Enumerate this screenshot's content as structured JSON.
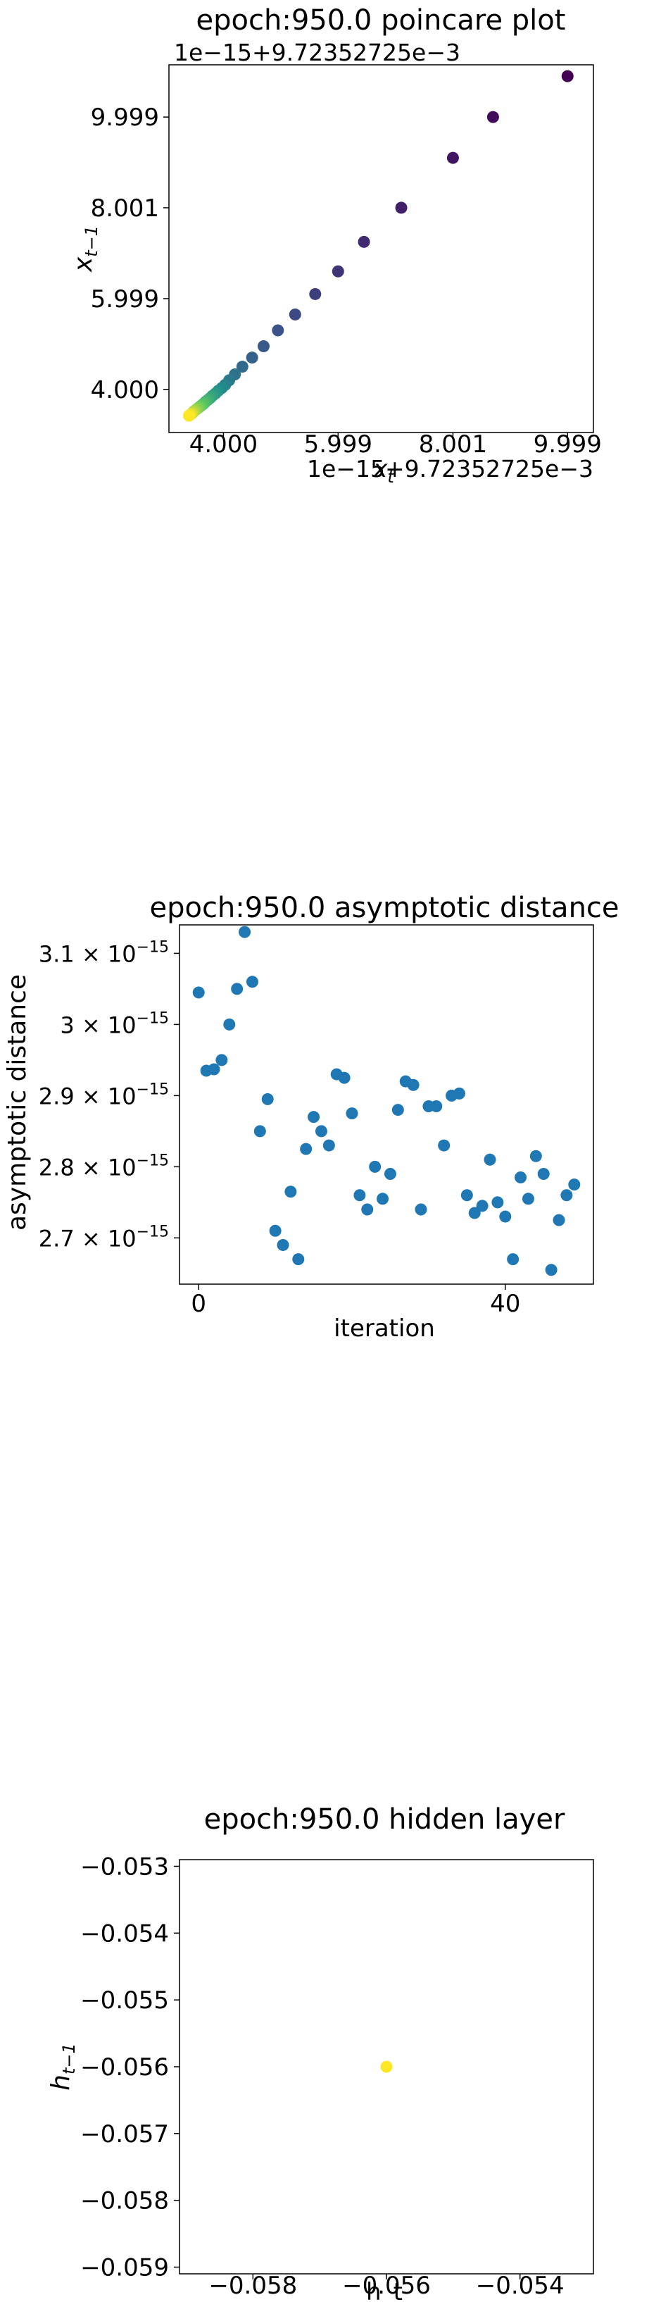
{
  "chart_data": [
    {
      "type": "scatter",
      "title": "epoch:950.0 poincare plot",
      "xlabel": "x_t",
      "ylabel": "x_{t-1}",
      "offset_label_top": "1e−15+9.72352725e−3",
      "offset_label_bottom": "1e−15+9.72352725e−3",
      "x_ticks": [
        "4.000",
        "5.999",
        "8.001",
        "9.999"
      ],
      "y_ticks": [
        "4.000",
        "5.999",
        "8.001",
        "9.999"
      ],
      "xlim": [
        3.05,
        10.45
      ],
      "ylim": [
        3.05,
        11.15
      ],
      "grid": false,
      "colormap": [
        "#440154",
        "#3b528b",
        "#21918c",
        "#5ec962",
        "#fde725"
      ],
      "x": [
        9.999,
        8.7,
        8.001,
        7.1,
        6.45,
        5.999,
        5.6,
        5.25,
        4.95,
        4.7,
        4.5,
        4.33,
        4.2,
        4.1,
        4.03,
        3.97,
        3.91,
        3.86,
        3.81,
        3.77,
        3.73,
        3.69,
        3.66,
        3.63,
        3.6,
        3.57,
        3.54,
        3.51,
        3.48,
        3.46,
        3.44,
        3.42,
        3.4
      ],
      "y": [
        10.9,
        9.999,
        9.1,
        8.001,
        7.25,
        6.6,
        6.1,
        5.65,
        5.3,
        4.95,
        4.7,
        4.5,
        4.33,
        4.2,
        4.1,
        4.03,
        3.97,
        3.91,
        3.86,
        3.81,
        3.77,
        3.73,
        3.69,
        3.66,
        3.63,
        3.6,
        3.57,
        3.54,
        3.51,
        3.48,
        3.46,
        3.44,
        3.42
      ]
    },
    {
      "type": "scatter",
      "title": "epoch:950.0 asymptotic distance",
      "xlabel": "iteration",
      "ylabel": "asymptotic distance",
      "x_ticks": [
        0,
        40
      ],
      "y_ticks": [
        {
          "value": 2.7,
          "mantissa": "2.7",
          "exp": "−15"
        },
        {
          "value": 2.8,
          "mantissa": "2.8",
          "exp": "−15"
        },
        {
          "value": 2.9,
          "mantissa": "2.9",
          "exp": "−15"
        },
        {
          "value": 3.0,
          "mantissa": "3",
          "exp": "−15"
        },
        {
          "value": 3.1,
          "mantissa": "3.1",
          "exp": "−15"
        }
      ],
      "times_sign": "×",
      "base": "10",
      "xlim": [
        -2.5,
        51.5
      ],
      "ylim": [
        2.635,
        3.14
      ],
      "grid": false,
      "color": "#1f77b4",
      "x": [
        0,
        1,
        2,
        3,
        4,
        5,
        6,
        7,
        8,
        9,
        10,
        11,
        12,
        13,
        14,
        15,
        16,
        17,
        18,
        19,
        20,
        21,
        22,
        23,
        24,
        25,
        26,
        27,
        28,
        29,
        30,
        31,
        32,
        33,
        34,
        35,
        36,
        37,
        38,
        39,
        40,
        41,
        42,
        43,
        44,
        45,
        46,
        47,
        48,
        49
      ],
      "y": [
        3.045,
        2.935,
        2.937,
        2.95,
        3.0,
        3.05,
        3.13,
        3.06,
        2.85,
        2.895,
        2.71,
        2.69,
        2.765,
        2.67,
        2.825,
        2.87,
        2.85,
        2.83,
        2.93,
        2.925,
        2.875,
        2.76,
        2.74,
        2.8,
        2.755,
        2.79,
        2.88,
        2.92,
        2.915,
        2.74,
        2.885,
        2.885,
        2.83,
        2.9,
        2.903,
        2.76,
        2.735,
        2.745,
        2.81,
        2.75,
        2.73,
        2.67,
        2.785,
        2.755,
        2.815,
        2.79,
        2.655,
        2.725,
        2.76,
        2.775
      ]
    },
    {
      "type": "scatter",
      "title": "epoch:950.0 hidden layer",
      "xlabel": "h_t",
      "ylabel": "h_{t-1}",
      "x_ticks": [
        {
          "value": -0.058,
          "label": "−0.058"
        },
        {
          "value": -0.056,
          "label": "−0.056"
        },
        {
          "value": -0.054,
          "label": "−0.054"
        }
      ],
      "y_ticks": [
        {
          "value": -0.053,
          "label": "−0.053"
        },
        {
          "value": -0.054,
          "label": "−0.054"
        },
        {
          "value": -0.055,
          "label": "−0.055"
        },
        {
          "value": -0.056,
          "label": "−0.056"
        },
        {
          "value": -0.057,
          "label": "−0.057"
        },
        {
          "value": -0.058,
          "label": "−0.058"
        },
        {
          "value": -0.059,
          "label": "−0.059"
        }
      ],
      "xlim": [
        -0.0591,
        -0.0529
      ],
      "ylim": [
        -0.0591,
        -0.0529
      ],
      "grid": false,
      "color": "#fde725",
      "x": [
        -0.056
      ],
      "y": [
        -0.056
      ]
    }
  ]
}
